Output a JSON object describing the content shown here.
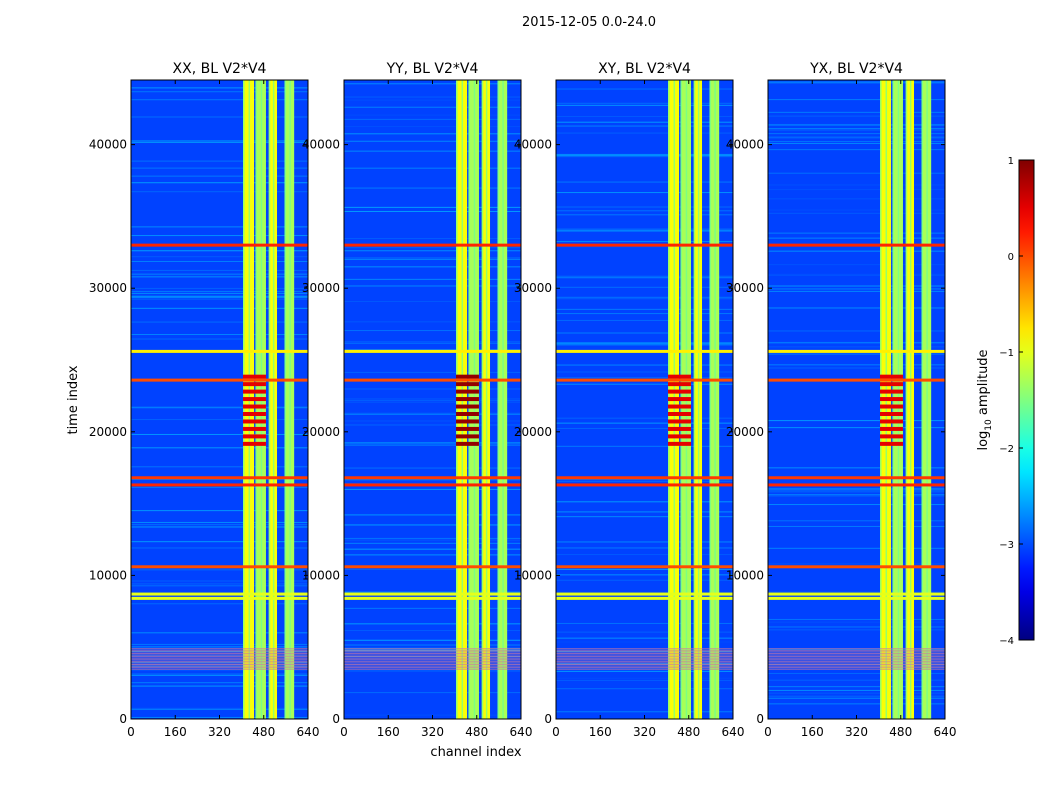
{
  "chart_data": {
    "type": "heatmap",
    "suptitle": "2015-12-05 0.0-24.0",
    "xlabel": "channel index",
    "ylabel": "time index",
    "xlim": [
      0,
      640
    ],
    "ylim": [
      0,
      44500
    ],
    "xticks": [
      0,
      160,
      320,
      480,
      640
    ],
    "yticks": [
      0,
      10000,
      20000,
      30000,
      40000
    ],
    "xtick_labels": [
      "0",
      "160",
      "320",
      "480",
      "640"
    ],
    "ytick_labels": [
      "0",
      "10000",
      "20000",
      "30000",
      "40000"
    ],
    "panels": [
      {
        "title": "XX, BL V2*V4",
        "polarization": "XX"
      },
      {
        "title": "YY, BL V2*V4",
        "polarization": "YY"
      },
      {
        "title": "XY, BL V2*V4",
        "polarization": "XY"
      },
      {
        "title": "YX, BL V2*V4",
        "polarization": "YX"
      }
    ],
    "colorbar": {
      "label": "log",
      "label_sub": "10",
      "label_suffix": " amplitude",
      "ticks": [
        1,
        0,
        -1,
        -2,
        -3,
        -4
      ],
      "tick_labels": [
        "1",
        "0",
        "−1",
        "−2",
        "−3",
        "−4"
      ],
      "range": [
        -4,
        1
      ],
      "colormap": "jet"
    },
    "bright_channel_bands": [
      [
        405,
        445
      ],
      [
        450,
        488
      ],
      [
        498,
        528
      ],
      [
        555,
        590
      ]
    ],
    "horizontal_flag_lines": [
      {
        "time": 33000,
        "level": 0.2
      },
      {
        "time": 16800,
        "level": 0.1
      },
      {
        "time": 16300,
        "level": 0.2
      },
      {
        "time": 10600,
        "level": 0.0
      },
      {
        "time": 8700,
        "level": -1.0
      },
      {
        "time": 8400,
        "level": -1.0
      },
      {
        "time": 23600,
        "level": 0.0
      },
      {
        "time": 25600,
        "level": -0.8
      }
    ]
  },
  "colors": {
    "background": "#ffffff",
    "axis": "#000000"
  }
}
